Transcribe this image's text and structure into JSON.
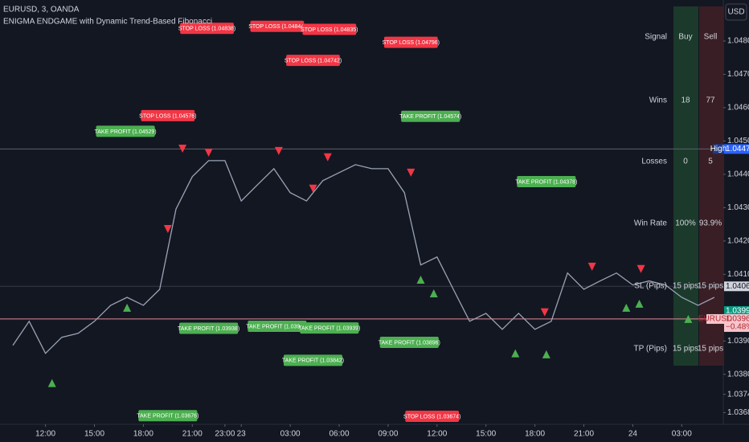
{
  "chart_data": {
    "type": "line",
    "title": "EURUSD, 3, OANDA",
    "subtitle": "ENIGMA ENDGAME with Dynamic Trend-Based Fibonacci",
    "currency": "USD",
    "color": "#9aa3b5",
    "categories": [
      null,
      null,
      "12:00",
      null,
      null,
      "15:00",
      null,
      null,
      "18:00",
      null,
      null,
      "21:00",
      null,
      "23:00",
      "23",
      null,
      null,
      "03:00",
      null,
      null,
      "06:00",
      null,
      null,
      "09:00",
      null,
      null,
      "12:00",
      null,
      null,
      "15:00",
      null,
      null,
      "18:00",
      null,
      null,
      "21:00",
      null,
      null,
      "24",
      null,
      null,
      "03:00",
      null,
      null
    ],
    "values": [
      1.03887,
      1.03959,
      1.03863,
      1.03911,
      1.03923,
      1.03959,
      1.04007,
      1.04031,
      1.04007,
      1.04055,
      1.04296,
      1.04393,
      1.04441,
      1.04441,
      1.0432,
      1.04369,
      1.04417,
      1.04345,
      1.0432,
      1.04381,
      1.04405,
      1.04429,
      1.04417,
      1.04417,
      1.04345,
      1.04128,
      1.04152,
      1.04055,
      1.03959,
      1.03983,
      1.03935,
      1.03983,
      1.03935,
      1.03959,
      1.04104,
      1.04055,
      1.0408,
      1.04104,
      1.04068,
      1.0408,
      1.04068,
      1.04031,
      1.04007,
      1.04031
    ],
    "ylim": [
      1.0365,
      1.04923
    ],
    "yticks": [
      {
        "value": 1.048,
        "label": "1.04800"
      },
      {
        "value": 1.047,
        "label": "1.04700"
      },
      {
        "value": 1.046,
        "label": "1.04600"
      },
      {
        "value": 1.045,
        "label": "1.04500"
      },
      {
        "value": 1.044,
        "label": "1.04400"
      },
      {
        "value": 1.043,
        "label": "1.04300"
      },
      {
        "value": 1.042,
        "label": "1.04200"
      },
      {
        "value": 1.041,
        "label": "1.04100"
      },
      {
        "value": 1.039,
        "label": "1.03900"
      },
      {
        "value": 1.038,
        "label": "1.03800"
      },
      {
        "value": 1.0374,
        "label": "1.03740"
      },
      {
        "value": 1.03685,
        "label": "1.03685"
      }
    ],
    "annotations": [
      {
        "label": "STOP LOSS (1.04838)",
        "value": 1.04838,
        "x": 11.9,
        "color": "#f23645"
      },
      {
        "label": "STOP LOSS (1.04844)",
        "value": 1.04844,
        "x": 16.2,
        "color": "#f23645"
      },
      {
        "label": "STOP LOSS (1.04835)",
        "value": 1.04835,
        "x": 19.4,
        "color": "#f23645"
      },
      {
        "label": "STOP LOSS (1.04796)",
        "value": 1.04796,
        "x": 24.4,
        "color": "#f23645"
      },
      {
        "label": "STOP LOSS (1.04742)",
        "value": 1.04742,
        "x": 18.4,
        "color": "#f23645"
      },
      {
        "label": "STOP LOSS (1.04576)",
        "value": 1.04576,
        "x": 9.5,
        "color": "#f23645"
      },
      {
        "label": "STOP LOSS (1.03674)",
        "value": 1.03674,
        "x": 25.7,
        "color": "#f23645"
      },
      {
        "label": "TAKE PROFIT (1.04529)",
        "value": 1.04529,
        "x": 6.9,
        "color": "#4caf50"
      },
      {
        "label": "TAKE PROFIT (1.04574)",
        "value": 1.04574,
        "x": 25.6,
        "color": "#4caf50"
      },
      {
        "label": "TAKE PROFIT (1.04378)",
        "value": 1.04378,
        "x": 32.7,
        "color": "#4caf50"
      },
      {
        "label": "TAKE PROFIT (1.03938)",
        "value": 1.03938,
        "x": 12.0,
        "color": "#4caf50"
      },
      {
        "label": "TAKE PROFIT (1.03944)",
        "value": 1.03944,
        "x": 16.2,
        "color": "#4caf50"
      },
      {
        "label": "TAKE PROFIT (1.03939)",
        "value": 1.03939,
        "x": 19.4,
        "color": "#4caf50"
      },
      {
        "label": "TAKE PROFIT (1.03896)",
        "value": 1.03896,
        "x": 24.3,
        "color": "#4caf50"
      },
      {
        "label": "TAKE PROFIT (1.03842)",
        "value": 1.03842,
        "x": 18.4,
        "color": "#4caf50"
      },
      {
        "label": "TAKE PROFIT (1.03676)",
        "value": 1.03676,
        "x": 9.5,
        "color": "#4caf50"
      }
    ],
    "markers": [
      {
        "shape": "down",
        "color": "#f23645",
        "x": [
          10.4,
          12.0,
          16.3,
          19.3,
          18.4,
          24.4,
          9.5,
          32.6,
          35.5,
          38.5
        ],
        "y": [
          1.04477,
          1.04465,
          1.0447,
          1.04451,
          1.04357,
          1.04405,
          1.04236,
          1.03986,
          1.04123,
          1.04116
        ]
      },
      {
        "shape": "up",
        "color": "#4caf50",
        "x": [
          2.4,
          7.0,
          25.0,
          25.8,
          30.8,
          32.7,
          37.6,
          38.4,
          41.4
        ],
        "y": [
          1.03774,
          1.04,
          1.04084,
          1.04043,
          1.03863,
          1.0386,
          1.04,
          1.04012,
          1.03966
        ]
      }
    ],
    "price_labels": [
      {
        "value": 1.04476,
        "label": "1.04476",
        "note": "High",
        "color": "#2962ff",
        "line": "#5d606b"
      },
      {
        "value": 1.04064,
        "label": "1.04064",
        "color": "#d1d4dc",
        "line": "#363a45"
      },
      {
        "value": 1.0399,
        "label": "1.03990",
        "note": "+0.91%",
        "color": "#089981"
      },
      {
        "value": 1.03966,
        "label": "1.03966",
        "note": "−0.48%",
        "name": "EURUSD",
        "color": "#f7c5cc",
        "line": "#e08b98"
      }
    ],
    "table": {
      "header": [
        "Signal",
        "Buy",
        "Sell"
      ],
      "rows": [
        [
          "Wins",
          "18",
          "77"
        ],
        [
          "Losses",
          "0",
          "5"
        ],
        [
          "Win Rate",
          "100%",
          "93.9%"
        ],
        [
          "SL (Pips)",
          "15 pips",
          "15 pips"
        ],
        [
          "TP (Pips)",
          "15 pips",
          "15 pips"
        ]
      ]
    }
  }
}
